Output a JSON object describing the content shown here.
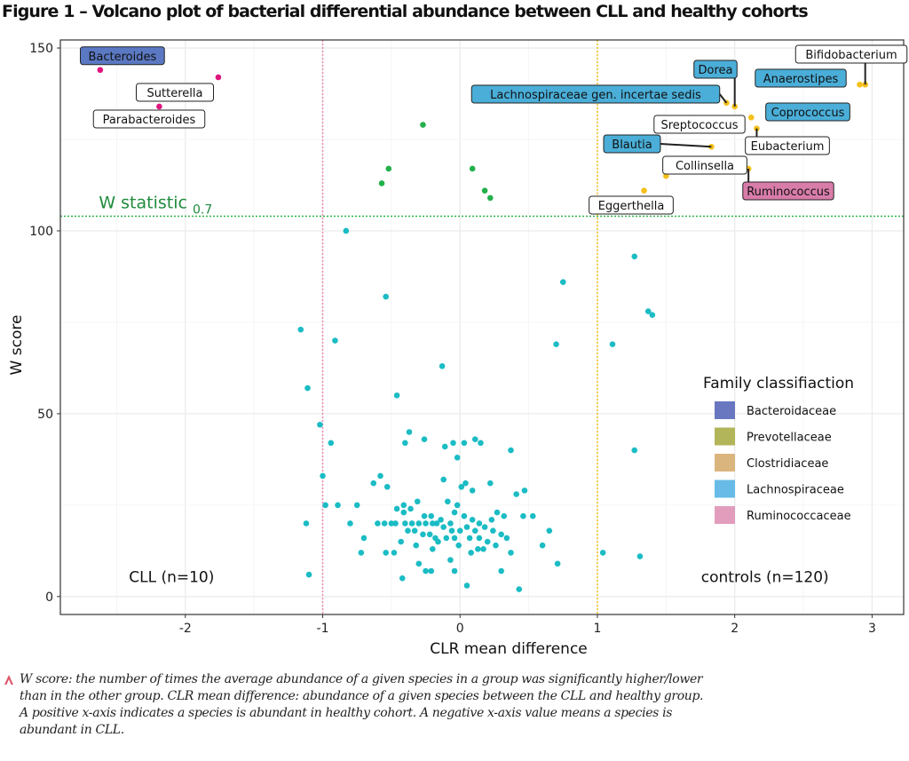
{
  "figure": {
    "title": "Figure 1 – Volcano plot of bacterial differential abundance between CLL and healthy cohorts",
    "footnote": "W score: the number of times the average abundance of a given species in a group was significantly higher/lower than in the other group. CLR mean difference: abundance of a given species between the CLL and healthy group. A positive x-axis indicates a species is abundant in healthy cohort. A negative x-axis value means a species is abundant in CLL.",
    "footnote_icon": "caret-up-icon"
  },
  "chart_data": {
    "type": "scatter",
    "title": "Volcano plot of bacterial differential abundance between CLL and healthy cohorts",
    "xlabel": "CLR mean difference",
    "ylabel": "W score",
    "xlim": [
      -2.91,
      3.23
    ],
    "ylim": [
      -4.9,
      152.2
    ],
    "xticks": [
      -2,
      -1,
      0,
      1,
      2,
      3
    ],
    "yticks": [
      0,
      50,
      100,
      150
    ],
    "xtick_labels": [
      "-2",
      "-1",
      "0",
      "1",
      "2",
      "3"
    ],
    "ytick_labels": [
      "0",
      "50",
      "100",
      "150"
    ],
    "grid": true,
    "reference_lines": [
      {
        "orientation": "horizontal",
        "value": 104,
        "color": "#2db34a",
        "style": "dotted",
        "label": "W statistic",
        "label_subscript": "0.7"
      },
      {
        "orientation": "vertical",
        "value": -1,
        "color": "#f08bb8",
        "style": "dotted"
      },
      {
        "orientation": "vertical",
        "value": 1,
        "color": "#f5c518",
        "style": "dotted"
      }
    ],
    "annotations": [
      {
        "text": "CLL (n=10)",
        "x": -2.1,
        "y": 4
      },
      {
        "text": "controls (n=120)",
        "x": 2.22,
        "y": 4
      }
    ],
    "point_colors": {
      "significant_cll": "#e0157f",
      "above_threshold_middle": "#23b04c",
      "significant_controls": "#f5c01a",
      "not_significant": "#1bbcc4"
    },
    "series": [
      {
        "name": "significant_cll",
        "points": [
          {
            "x": -2.62,
            "y": 144,
            "label": "Bacteroides",
            "family": "Bacteroidaceae"
          },
          {
            "x": -1.76,
            "y": 142,
            "label": "Sutterella",
            "family": null
          },
          {
            "x": -2.19,
            "y": 134,
            "label": "Parabacteroides",
            "family": null
          }
        ]
      },
      {
        "name": "above_threshold_middle",
        "points": [
          {
            "x": -0.27,
            "y": 129
          },
          {
            "x": -0.52,
            "y": 117
          },
          {
            "x": -0.57,
            "y": 113
          },
          {
            "x": 0.09,
            "y": 117
          },
          {
            "x": 0.18,
            "y": 111
          },
          {
            "x": 0.22,
            "y": 109
          }
        ]
      },
      {
        "name": "significant_controls",
        "points": [
          {
            "x": 2.95,
            "y": 140,
            "label": "Bifidobacterium",
            "family": null
          },
          {
            "x": 2.91,
            "y": 140,
            "label": "Anaerostipes",
            "family": "Lachnospiraceae"
          },
          {
            "x": 2.0,
            "y": 134,
            "label": "Dorea",
            "family": "Lachnospiraceae"
          },
          {
            "x": 1.94,
            "y": 135,
            "label": "Lachnospiraceae gen. incertae sedis",
            "family": "Lachnospiraceae"
          },
          {
            "x": 2.27,
            "y": 134,
            "label": "Coprococcus",
            "family": "Lachnospiraceae"
          },
          {
            "x": 2.12,
            "y": 131,
            "label": "Sreptococcus",
            "family": null
          },
          {
            "x": 2.16,
            "y": 128,
            "label": "Eubacterium",
            "family": null
          },
          {
            "x": 1.83,
            "y": 123,
            "label": "Blautia",
            "family": "Lachnospiraceae"
          },
          {
            "x": 2.1,
            "y": 117,
            "label": "Ruminococcus",
            "family": "Ruminococcaceae"
          },
          {
            "x": 1.5,
            "y": 115,
            "label": "Collinsella",
            "family": null
          },
          {
            "x": 1.34,
            "y": 111,
            "label": "Eggerthella",
            "family": null
          }
        ]
      },
      {
        "name": "not_significant",
        "points": [
          {
            "x": -0.83,
            "y": 100
          },
          {
            "x": -0.54,
            "y": 82
          },
          {
            "x": -1.16,
            "y": 73
          },
          {
            "x": -0.91,
            "y": 70
          },
          {
            "x": -0.13,
            "y": 63
          },
          {
            "x": -1.11,
            "y": 57
          },
          {
            "x": -0.46,
            "y": 55
          },
          {
            "x": -1.02,
            "y": 47
          },
          {
            "x": 1.27,
            "y": 93
          },
          {
            "x": 0.75,
            "y": 86
          },
          {
            "x": 1.37,
            "y": 78
          },
          {
            "x": 1.4,
            "y": 77
          },
          {
            "x": 0.7,
            "y": 69
          },
          {
            "x": 1.11,
            "y": 69
          },
          {
            "x": 1.27,
            "y": 40
          },
          {
            "x": 1.04,
            "y": 12
          },
          {
            "x": 1.31,
            "y": 11
          },
          {
            "x": -0.94,
            "y": 42
          },
          {
            "x": -0.37,
            "y": 45
          },
          {
            "x": -0.4,
            "y": 42
          },
          {
            "x": -0.26,
            "y": 43
          },
          {
            "x": -0.11,
            "y": 41
          },
          {
            "x": -0.05,
            "y": 42
          },
          {
            "x": 0.03,
            "y": 42
          },
          {
            "x": 0.11,
            "y": 43
          },
          {
            "x": 0.15,
            "y": 42
          },
          {
            "x": -0.02,
            "y": 38
          },
          {
            "x": 0.37,
            "y": 40
          },
          {
            "x": -1.0,
            "y": 33
          },
          {
            "x": -0.58,
            "y": 33
          },
          {
            "x": -0.63,
            "y": 31
          },
          {
            "x": -0.53,
            "y": 30
          },
          {
            "x": -0.12,
            "y": 32
          },
          {
            "x": 0.04,
            "y": 31
          },
          {
            "x": 0.22,
            "y": 31
          },
          {
            "x": -0.89,
            "y": 25
          },
          {
            "x": -0.75,
            "y": 25
          },
          {
            "x": -0.41,
            "y": 25
          },
          {
            "x": -0.31,
            "y": 26
          },
          {
            "x": -0.09,
            "y": 26
          },
          {
            "x": 0.01,
            "y": 30
          },
          {
            "x": -0.02,
            "y": 25
          },
          {
            "x": 0.09,
            "y": 29
          },
          {
            "x": 0.41,
            "y": 28
          },
          {
            "x": 0.47,
            "y": 29
          },
          {
            "x": 0.46,
            "y": 22
          },
          {
            "x": -0.46,
            "y": 24
          },
          {
            "x": -0.41,
            "y": 23
          },
          {
            "x": -0.36,
            "y": 24
          },
          {
            "x": -0.26,
            "y": 22
          },
          {
            "x": -0.21,
            "y": 22
          },
          {
            "x": -0.14,
            "y": 21
          },
          {
            "x": -0.07,
            "y": 20
          },
          {
            "x": -0.04,
            "y": 23
          },
          {
            "x": 0.03,
            "y": 22
          },
          {
            "x": 0.09,
            "y": 21
          },
          {
            "x": 0.14,
            "y": 20
          },
          {
            "x": 0.23,
            "y": 21
          },
          {
            "x": 0.27,
            "y": 23
          },
          {
            "x": 0.32,
            "y": 22
          },
          {
            "x": -0.8,
            "y": 20
          },
          {
            "x": -0.6,
            "y": 20
          },
          {
            "x": -0.55,
            "y": 20
          },
          {
            "x": -0.5,
            "y": 20
          },
          {
            "x": -0.47,
            "y": 20
          },
          {
            "x": -0.4,
            "y": 20
          },
          {
            "x": -0.35,
            "y": 20
          },
          {
            "x": -0.3,
            "y": 20
          },
          {
            "x": -0.25,
            "y": 20
          },
          {
            "x": -0.2,
            "y": 20
          },
          {
            "x": -0.17,
            "y": 20
          },
          {
            "x": -0.12,
            "y": 19
          },
          {
            "x": -0.06,
            "y": 18
          },
          {
            "x": 0.0,
            "y": 18
          },
          {
            "x": 0.05,
            "y": 19
          },
          {
            "x": 0.11,
            "y": 18
          },
          {
            "x": 0.18,
            "y": 19
          },
          {
            "x": 0.24,
            "y": 18
          },
          {
            "x": 0.3,
            "y": 17
          },
          {
            "x": 0.34,
            "y": 16
          },
          {
            "x": -0.38,
            "y": 18
          },
          {
            "x": -0.33,
            "y": 18
          },
          {
            "x": -0.27,
            "y": 17
          },
          {
            "x": -0.22,
            "y": 17
          },
          {
            "x": -0.18,
            "y": 16
          },
          {
            "x": -0.1,
            "y": 16
          },
          {
            "x": -0.04,
            "y": 16
          },
          {
            "x": 0.07,
            "y": 16
          },
          {
            "x": 0.14,
            "y": 16
          },
          {
            "x": 0.2,
            "y": 15
          },
          {
            "x": 0.26,
            "y": 14
          },
          {
            "x": -0.7,
            "y": 16
          },
          {
            "x": -0.43,
            "y": 15
          },
          {
            "x": -0.32,
            "y": 14
          },
          {
            "x": -0.16,
            "y": 15
          },
          {
            "x": -0.01,
            "y": 14
          },
          {
            "x": 0.13,
            "y": 13
          },
          {
            "x": 0.17,
            "y": 13
          },
          {
            "x": -0.72,
            "y": 12
          },
          {
            "x": -0.54,
            "y": 12
          },
          {
            "x": -0.48,
            "y": 12
          },
          {
            "x": -0.2,
            "y": 13
          },
          {
            "x": -0.07,
            "y": 10
          },
          {
            "x": 0.08,
            "y": 12
          },
          {
            "x": 0.37,
            "y": 12
          },
          {
            "x": 0.53,
            "y": 22
          },
          {
            "x": 0.6,
            "y": 14
          },
          {
            "x": 0.65,
            "y": 18
          },
          {
            "x": -0.3,
            "y": 9
          },
          {
            "x": -0.25,
            "y": 7
          },
          {
            "x": -0.21,
            "y": 7
          },
          {
            "x": -0.04,
            "y": 7
          },
          {
            "x": 0.3,
            "y": 7
          },
          {
            "x": -0.42,
            "y": 5
          },
          {
            "x": 0.05,
            "y": 3
          },
          {
            "x": 0.43,
            "y": 2
          },
          {
            "x": 0.71,
            "y": 9
          },
          {
            "x": -1.12,
            "y": 20
          },
          {
            "x": -1.1,
            "y": 6
          },
          {
            "x": -0.98,
            "y": 25
          }
        ]
      }
    ],
    "label_styles": {
      "Bacteroidaceae": "#5b78c2",
      "Lachnospiraceae": "#4aaed8",
      "Ruminococcaceae": "#d87ca9",
      "none": "#ffffff"
    },
    "legend": {
      "title": "Family classifiaction",
      "position": "right",
      "entries": [
        {
          "label": "Bacteroidaceae",
          "color": "#6877c0"
        },
        {
          "label": "Prevotellaceae",
          "color": "#b3b55a"
        },
        {
          "label": "Clostridiaceae",
          "color": "#dbb57e"
        },
        {
          "label": "Lachnospiraceae",
          "color": "#67bbe6"
        },
        {
          "label": "Ruminococcaceae",
          "color": "#e29dbd"
        }
      ]
    }
  }
}
